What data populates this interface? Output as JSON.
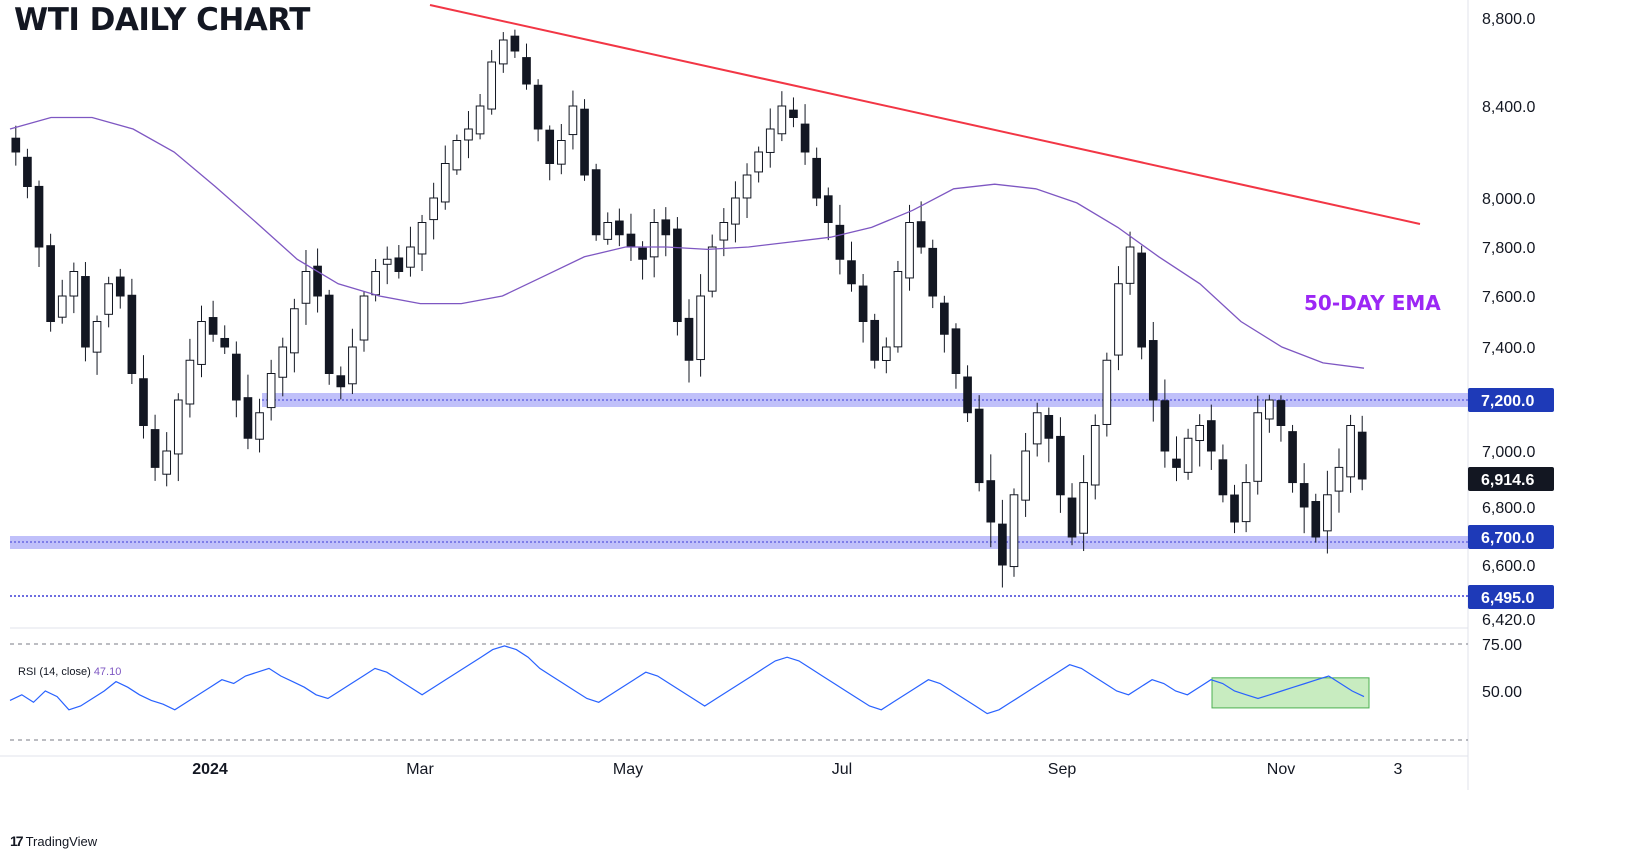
{
  "title": "WTI DAILY CHART",
  "ema_label": "50-DAY EMA",
  "rsi_label": "RSI (14, close)",
  "rsi_value": "47.10",
  "branding": "TradingView",
  "colors": {
    "up": "#ffffff",
    "down": "#131722",
    "wick": "#131722",
    "ema": "#7e57c2",
    "trendline": "#f23645",
    "zone": "#8c8cf5",
    "rsi_line": "#2962ff",
    "rsi_box": "#c8ecc0",
    "ema_label": "#9c27f5"
  },
  "chart_data": {
    "type": "candlestick",
    "price_axis_ticks": [
      "8,800.0",
      "8,400.0",
      "8,000.0",
      "7,800.0",
      "7,600.0",
      "7,400.0",
      "7,000.0",
      "6,800.0",
      "6,600.0",
      "6,420.0"
    ],
    "highlighted_levels": [
      {
        "label": "7,200.0",
        "value": 7200,
        "style": "zone"
      },
      {
        "label": "6,914.6",
        "value": 6914.6,
        "style": "last-price"
      },
      {
        "label": "6,700.0",
        "value": 6700,
        "style": "zone"
      },
      {
        "label": "6,495.0",
        "value": 6495,
        "style": "line"
      }
    ],
    "x_axis_labels": [
      "2024",
      "Mar",
      "May",
      "Jul",
      "Sep",
      "Nov",
      "3"
    ],
    "ohlc_close_approx": [
      8200,
      8050,
      7800,
      7500,
      7600,
      7700,
      7400,
      7500,
      7650,
      7600,
      7300,
      7100,
      6950,
      7000,
      7200,
      7350,
      7500,
      7450,
      7400,
      7200,
      7050,
      7150,
      7300,
      7400,
      7550,
      7700,
      7600,
      7300,
      7250,
      7400,
      7600,
      7700,
      7750,
      7700,
      7800,
      7900,
      8000,
      8150,
      8250,
      8300,
      8400,
      8600,
      8700,
      8650,
      8500,
      8300,
      8150,
      8250,
      8400,
      8100,
      7850,
      7900,
      7850,
      7800,
      7750,
      7900,
      7850,
      7500,
      7350,
      7600,
      7800,
      7900,
      8000,
      8100,
      8200,
      8300,
      8400,
      8350,
      8200,
      8000,
      7900,
      7750,
      7650,
      7500,
      7350,
      7400,
      7700,
      7900,
      7800,
      7600,
      7450,
      7300,
      7150,
      6900,
      6750,
      6600,
      6850,
      7000,
      7150,
      7050,
      6850,
      6700,
      6900,
      7100,
      7350,
      7650,
      7800,
      7400,
      7200,
      7000,
      6950,
      7050,
      7100,
      7000,
      6850,
      6750,
      6900,
      7150,
      7200,
      7100,
      6900,
      6800,
      6700,
      6850,
      6950,
      7100,
      6914.6
    ],
    "ema50_approx": [
      8300,
      8350,
      8350,
      8300,
      8200,
      8050,
      7900,
      7750,
      7650,
      7600,
      7570,
      7570,
      7600,
      7680,
      7760,
      7800,
      7800,
      7790,
      7800,
      7820,
      7840,
      7880,
      7950,
      8040,
      8060,
      8040,
      7980,
      7880,
      7760,
      7650,
      7500,
      7400,
      7340,
      7320
    ],
    "ema_x_range": [
      0,
      1361
    ],
    "trendline": {
      "from": {
        "x_frac": 0.292,
        "price": 8745
      },
      "to": {
        "x_frac": 0.969,
        "price": 7895
      }
    },
    "rsi": {
      "levels": [
        75.0,
        50.0
      ],
      "ticks": [
        "75.00",
        "50.00"
      ],
      "values": [
        45,
        48,
        44,
        50,
        47,
        40,
        42,
        46,
        50,
        55,
        52,
        48,
        45,
        43,
        40,
        44,
        48,
        52,
        56,
        54,
        58,
        60,
        62,
        58,
        55,
        52,
        48,
        46,
        50,
        54,
        58,
        62,
        60,
        56,
        52,
        48,
        52,
        56,
        60,
        64,
        68,
        72,
        74,
        72,
        68,
        62,
        58,
        54,
        50,
        46,
        44,
        48,
        52,
        56,
        60,
        58,
        54,
        50,
        46,
        42,
        46,
        50,
        54,
        58,
        62,
        66,
        68,
        66,
        62,
        58,
        54,
        50,
        46,
        42,
        40,
        44,
        48,
        52,
        56,
        54,
        50,
        46,
        42,
        38,
        40,
        44,
        48,
        52,
        56,
        60,
        64,
        62,
        58,
        54,
        50,
        48,
        52,
        56,
        54,
        50,
        48,
        52,
        56,
        54,
        50,
        48,
        46,
        48,
        50,
        52,
        54,
        56,
        58,
        54,
        50,
        47
      ],
      "consolidation_box": {
        "x_from_frac": 0.776,
        "x_to_frac": 0.878,
        "y_top": 57,
        "y_bottom": 41
      }
    }
  }
}
